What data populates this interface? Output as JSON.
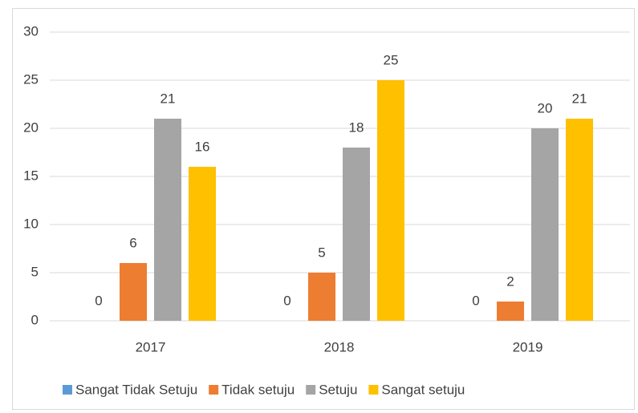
{
  "chart_data": {
    "type": "bar",
    "categories": [
      "2017",
      "2018",
      "2019"
    ],
    "series": [
      {
        "name": "Sangat Tidak Setuju",
        "color": "#5b9bd5",
        "values": [
          0,
          0,
          0
        ]
      },
      {
        "name": "Tidak setuju",
        "color": "#ed7d31",
        "values": [
          6,
          5,
          2
        ]
      },
      {
        "name": "Setuju",
        "color": "#a5a5a5",
        "values": [
          21,
          18,
          20
        ]
      },
      {
        "name": "Sangat setuju",
        "color": "#ffc000",
        "values": [
          16,
          25,
          21
        ]
      }
    ],
    "ylim": [
      0,
      30
    ],
    "yticks": [
      0,
      5,
      10,
      15,
      20,
      25,
      30
    ],
    "grid": true,
    "legend": "bottom"
  }
}
